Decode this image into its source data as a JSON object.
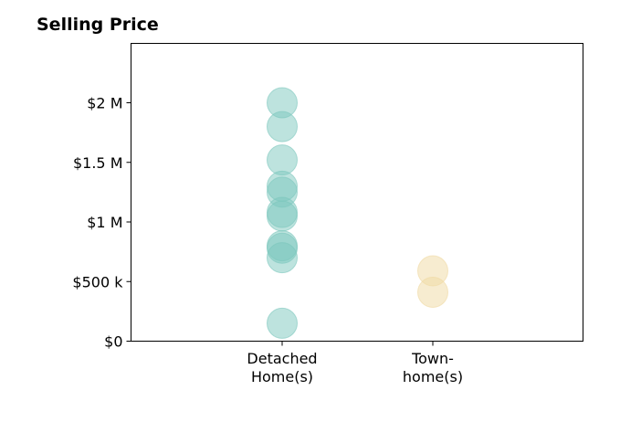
{
  "chart_data": {
    "type": "scatter",
    "title": "Selling Price",
    "xlabel": "",
    "ylabel": "",
    "ylim": [
      0,
      2500000
    ],
    "grid": false,
    "categories": [
      {
        "lines": [
          "Detached",
          "Home(s)"
        ]
      },
      {
        "lines": [
          "Town-",
          "home(s)"
        ]
      }
    ],
    "y_ticks": [
      {
        "value": 0,
        "label": "$0"
      },
      {
        "value": 500000,
        "label": "$500 k"
      },
      {
        "value": 1000000,
        "label": "$1 M"
      },
      {
        "value": 1500000,
        "label": "$1.5 M"
      },
      {
        "value": 2000000,
        "label": "$2 M"
      }
    ],
    "series": [
      {
        "category": 0,
        "color": "#7cc7bd",
        "values": [
          2000000,
          1800000,
          1520000,
          1300000,
          1250000,
          1080000,
          1050000,
          800000,
          780000,
          700000,
          150000
        ]
      },
      {
        "category": 1,
        "color": "#f0d9a2",
        "values": [
          590000,
          410000
        ]
      }
    ]
  }
}
